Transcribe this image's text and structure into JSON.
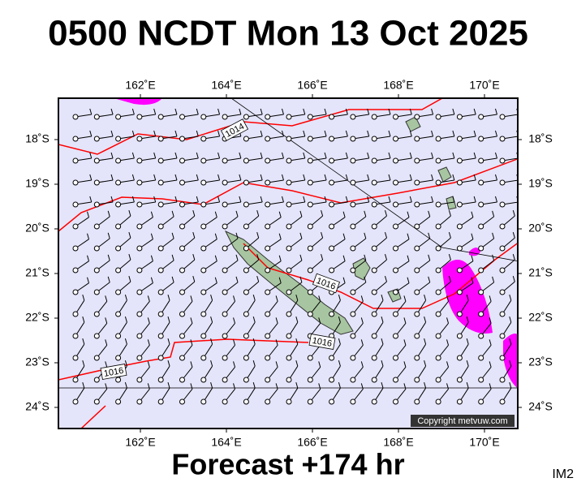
{
  "title": "0500 NCDT Mon 13 Oct 2025",
  "lon_labels": [
    "162˚E",
    "164˚E",
    "166˚E",
    "168˚E",
    "170˚E"
  ],
  "lat_labels": [
    "18˚S",
    "19˚S",
    "20˚S",
    "21˚S",
    "22˚S",
    "23˚S",
    "24˚S"
  ],
  "isobar_labels": [
    "1014",
    "1016",
    "1016",
    "1016"
  ],
  "copyright": "Copyright metvuw.com",
  "footer": "Forecast +174 hr",
  "corner": "IM2"
}
